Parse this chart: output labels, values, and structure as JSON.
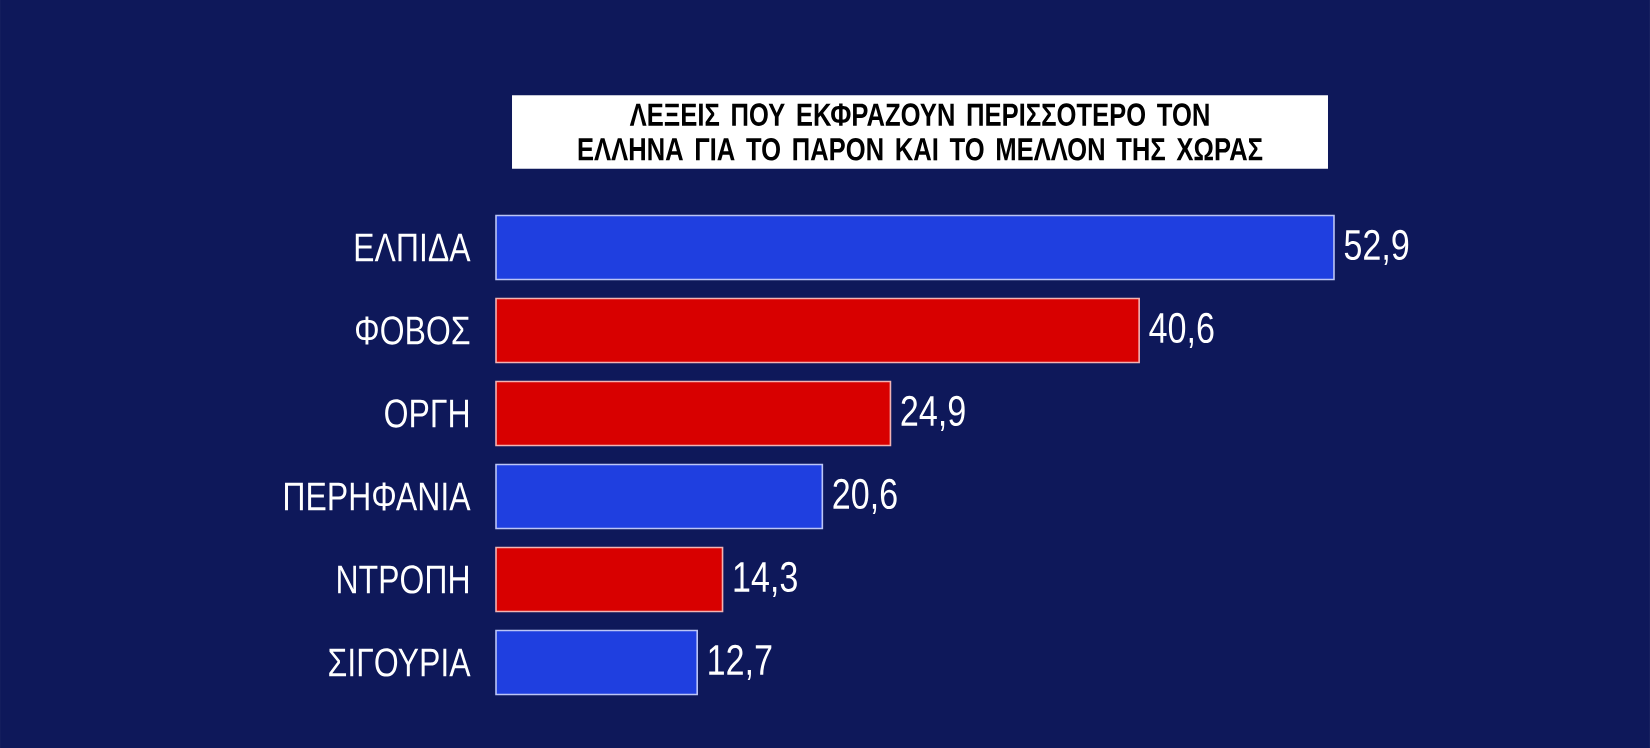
{
  "chart_data": {
    "type": "bar",
    "orientation": "horizontal",
    "title": "ΛΕΞΕΙΣ ΠΟΥ ΕΚΦΡΑΖΟΥΝ ΠΕΡΙΣΣΟΤΕΡΟ ΤΟΝ ΕΛΛΗΝΑ ΓΙΑ ΤΟ ΠΑΡΟΝ ΚΑΙ ΤΟ ΜΕΛΛΟΝ ΤΗΣ ΧΩΡΑΣ",
    "categories": [
      "ΕΛΠΙΔΑ",
      "ΦΟΒΟΣ",
      "ΟΡΓΗ",
      "ΠΕΡΗΦΑΝΙΑ",
      "ΝΤΡΟΠΗ",
      "ΣΙΓΟΥΡΙΑ"
    ],
    "values": [
      52.9,
      40.6,
      24.9,
      20.6,
      14.3,
      12.7
    ],
    "value_labels": [
      "52,9",
      "40,6",
      "24,9",
      "20,6",
      "14,3",
      "12,7"
    ],
    "colors": [
      "#1f3fe0",
      "#d80000",
      "#d80000",
      "#1f3fe0",
      "#d80000",
      "#1f3fe0"
    ]
  }
}
